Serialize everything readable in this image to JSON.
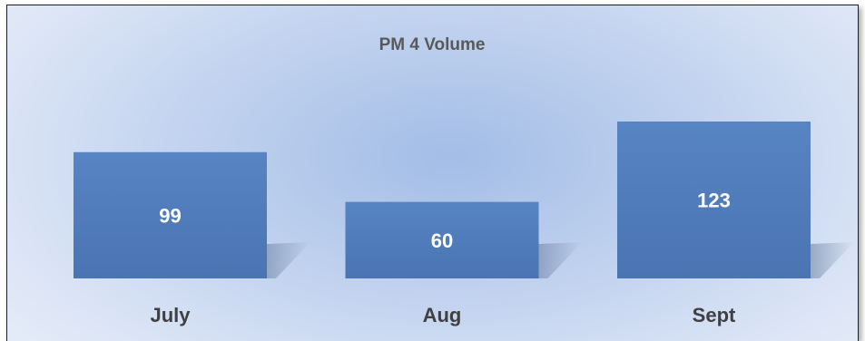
{
  "chart_data": {
    "type": "bar",
    "title": "PM 4 Volume",
    "categories": [
      "July",
      "Aug",
      "Sept"
    ],
    "values": [
      99,
      60,
      123
    ],
    "ylim": [
      0,
      123
    ],
    "grid": false,
    "legend": "none",
    "data_labels": true,
    "bar_color": "#4a74b2",
    "bar_color_light": "#5784c3",
    "background_color": "#c2d3ef"
  }
}
